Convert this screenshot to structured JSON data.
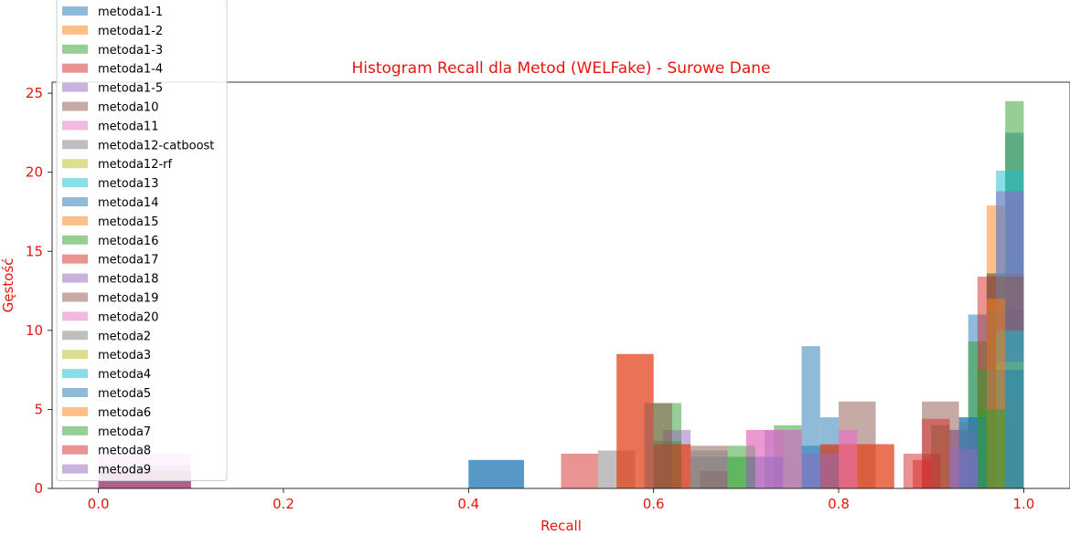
{
  "chart_data": {
    "type": "bar",
    "title": "Histogram Recall dla Metod (WELFake) - Surowe Dane",
    "xlabel": "Recall",
    "ylabel": "Gęstość",
    "xlim": [
      -0.05,
      1.05
    ],
    "ylim": [
      0,
      25.7
    ],
    "xticks": [
      "0.0",
      "0.2",
      "0.4",
      "0.6",
      "0.8",
      "1.0"
    ],
    "xtick_values": [
      0.0,
      0.2,
      0.4,
      0.6,
      0.8,
      1.0
    ],
    "yticks": [
      "0",
      "5",
      "10",
      "15",
      "20",
      "25"
    ],
    "ytick_values": [
      0,
      5,
      10,
      15,
      20,
      25
    ],
    "grid": false,
    "legend_position": "top-left",
    "title_color": "#e8140e",
    "label_color": "#e8140e",
    "series": [
      {
        "name": "metoda1-1",
        "color": "#1f77b4",
        "bins": [
          [
            0.94,
            0.96,
            11.0
          ],
          [
            0.96,
            0.98,
            9.0
          ],
          [
            0.98,
            1.0,
            22.5
          ],
          [
            0.76,
            0.78,
            9.0
          ],
          [
            0.78,
            0.8,
            4.5
          ]
        ]
      },
      {
        "name": "metoda1-2",
        "color": "#ff7f0e",
        "bins": [
          [
            0.96,
            0.98,
            17.9
          ],
          [
            0.98,
            1.0,
            11.0
          ]
        ]
      },
      {
        "name": "metoda1-3",
        "color": "#2ca02c",
        "bins": [
          [
            0.98,
            1.0,
            24.5
          ],
          [
            0.96,
            0.98,
            13.6
          ],
          [
            0.94,
            0.96,
            9.3
          ],
          [
            0.6,
            0.63,
            5.4
          ],
          [
            0.73,
            0.76,
            4.0
          ],
          [
            0.9,
            0.92,
            4.0
          ]
        ]
      },
      {
        "name": "metoda1-4",
        "color": "#d62728",
        "bins": [
          [
            0.95,
            0.97,
            13.4
          ],
          [
            0.5,
            0.54,
            2.2
          ],
          [
            0.97,
            1.0,
            5.5
          ]
        ]
      },
      {
        "name": "metoda1-5",
        "color": "#9467bd",
        "bins": [
          [
            0.98,
            1.0,
            18.8
          ],
          [
            0.61,
            0.64,
            3.7
          ],
          [
            0.92,
            0.95,
            3.7
          ]
        ]
      },
      {
        "name": "metoda10",
        "color": "#8c564b",
        "bins": [
          [
            0.8,
            0.84,
            5.5
          ],
          [
            0.96,
            1.0,
            13.6
          ],
          [
            0.64,
            0.68,
            2.7
          ]
        ]
      },
      {
        "name": "metoda11",
        "color": "#e377c2",
        "bins": [
          [
            0.0,
            0.1,
            2.2
          ],
          [
            0.7,
            0.74,
            3.7
          ],
          [
            0.8,
            0.82,
            3.7
          ]
        ]
      },
      {
        "name": "metoda12-catboost",
        "color": "#7f7f7f",
        "bins": [
          [
            0.54,
            0.58,
            2.4
          ],
          [
            0.64,
            0.68,
            2.4
          ],
          [
            0.97,
            1.0,
            9.0
          ]
        ]
      },
      {
        "name": "metoda12-rf",
        "color": "#bcbd22",
        "bins": [
          [
            0.96,
            0.98,
            4.3
          ],
          [
            0.98,
            1.0,
            8.6
          ]
        ]
      },
      {
        "name": "metoda13",
        "color": "#17becf",
        "bins": [
          [
            0.97,
            1.0,
            20.1
          ],
          [
            0.94,
            0.97,
            4.5
          ]
        ]
      },
      {
        "name": "metoda14",
        "color": "#1f77b4",
        "bins": [
          [
            0.4,
            0.46,
            1.8
          ],
          [
            0.76,
            0.8,
            2.7
          ],
          [
            0.93,
            0.96,
            4.5
          ],
          [
            0.96,
            1.0,
            11.3
          ]
        ]
      },
      {
        "name": "metoda15",
        "color": "#ff7f0e",
        "bins": [
          [
            0.56,
            0.6,
            8.5
          ],
          [
            0.6,
            0.64,
            2.8
          ],
          [
            0.78,
            0.82,
            2.8
          ],
          [
            0.82,
            0.86,
            2.8
          ],
          [
            0.96,
            1.0,
            5.6
          ]
        ]
      },
      {
        "name": "metoda16",
        "color": "#2ca02c",
        "bins": [
          [
            0.6,
            0.63,
            3.0
          ],
          [
            0.68,
            0.71,
            2.7
          ],
          [
            0.95,
            0.98,
            7.5
          ]
        ]
      },
      {
        "name": "metoda17",
        "color": "#d62728",
        "bins": [
          [
            0.56,
            0.6,
            8.5
          ],
          [
            0.6,
            0.64,
            2.8
          ],
          [
            0.78,
            0.82,
            2.8
          ],
          [
            0.82,
            0.86,
            2.8
          ],
          [
            0.87,
            0.91,
            2.2
          ],
          [
            0.97,
            1.0,
            5.7
          ]
        ]
      },
      {
        "name": "metoda18",
        "color": "#9467bd",
        "bins": [
          [
            0.72,
            0.76,
            3.7
          ],
          [
            0.76,
            0.8,
            2.2
          ],
          [
            0.92,
            0.95,
            3.7
          ],
          [
            0.97,
            1.0,
            18.8
          ]
        ]
      },
      {
        "name": "metoda19",
        "color": "#8c564b",
        "bins": [
          [
            0.0,
            0.1,
            1.1
          ],
          [
            0.59,
            0.62,
            5.4
          ],
          [
            0.65,
            0.68,
            1.1
          ],
          [
            0.89,
            0.93,
            5.5
          ],
          [
            0.96,
            1.0,
            13.4
          ]
        ]
      },
      {
        "name": "metoda20",
        "color": "#e377c2",
        "bins": [
          [
            0.7,
            0.76,
            3.7
          ],
          [
            0.8,
            0.82,
            3.7
          ]
        ]
      },
      {
        "name": "metoda2",
        "color": "#7f7f7f",
        "bins": [
          [
            0.64,
            0.68,
            2.0
          ],
          [
            0.93,
            0.96,
            4.2
          ]
        ]
      },
      {
        "name": "metoda3",
        "color": "#bcbd22",
        "bins": [
          [
            0.97,
            1.0,
            8.0
          ]
        ]
      },
      {
        "name": "metoda4",
        "color": "#17becf",
        "bins": [
          [
            0.97,
            1.0,
            10.0
          ]
        ]
      },
      {
        "name": "metoda5",
        "color": "#1f77b4",
        "bins": [
          [
            0.4,
            0.46,
            1.8
          ],
          [
            0.93,
            0.96,
            4.5
          ],
          [
            0.96,
            1.0,
            7.5
          ]
        ]
      },
      {
        "name": "metoda6",
        "color": "#ff7f0e",
        "bins": [
          [
            0.96,
            0.98,
            12.0
          ]
        ]
      },
      {
        "name": "metoda7",
        "color": "#2ca02c",
        "bins": [
          [
            0.68,
            0.71,
            2.0
          ],
          [
            0.95,
            0.98,
            5.0
          ]
        ]
      },
      {
        "name": "metoda8",
        "color": "#d62728",
        "bins": [
          [
            0.0,
            0.1,
            1.1
          ],
          [
            0.89,
            0.92,
            4.4
          ],
          [
            0.88,
            0.9,
            1.8
          ]
        ]
      },
      {
        "name": "metoda9",
        "color": "#9467bd",
        "bins": [
          [
            0.0,
            0.1,
            1.5
          ],
          [
            0.7,
            0.74,
            2.0
          ],
          [
            0.92,
            0.95,
            2.5
          ]
        ]
      }
    ]
  }
}
